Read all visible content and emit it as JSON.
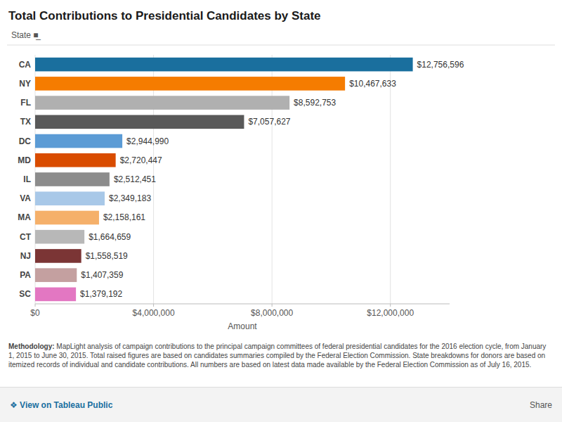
{
  "chart_data": {
    "type": "bar",
    "orientation": "horizontal",
    "title": "Total Contributions to Presidential Candidates by State",
    "categories": [
      "SC",
      "PA",
      "NJ",
      "CT",
      "MA",
      "VA",
      "IL",
      "MD",
      "DC",
      "TX",
      "FL",
      "NY",
      "CA"
    ],
    "values": [
      1379192,
      1407359,
      1558519,
      1664659,
      2158161,
      2349183,
      2512451,
      2720447,
      2944990,
      7057627,
      8592753,
      10467633,
      12756596
    ],
    "value_labels": [
      "$1,379,192",
      "$1,407,359",
      "$1,558,519",
      "$1,664,659",
      "$2,158,161",
      "$2,349,183",
      "$2,512,451",
      "$2,720,447",
      "$2,944,990",
      "$7,057,627",
      "$8,592,753",
      "$10,467,633",
      "$12,756,596"
    ],
    "colors": [
      "#e377c2",
      "#c4a0a0",
      "#7b3535",
      "#b8b8b8",
      "#f5b06a",
      "#a8c8e8",
      "#8c8c8c",
      "#d94c00",
      "#5b9bd5",
      "#595959",
      "#b0b0b0",
      "#f57c00",
      "#1a6f9e"
    ],
    "xlabel": "Amount",
    "xlim": [
      0,
      14000000
    ],
    "xticks": [
      {
        "value": 0,
        "label": "$0"
      },
      {
        "value": 4000000,
        "label": "$4,000,000"
      },
      {
        "value": 8000000,
        "label": "$8,000,000"
      },
      {
        "value": 12000000,
        "label": "$12,000,000"
      }
    ],
    "grid": true,
    "data_labels": true,
    "annotations": [
      "State  ■̲",
      "Methodology:",
      " MapLight analysis of campaign contributions to the principal campaign committees of federal presidential candidates for the 2016 election cycle, from January 1, 2015 to June 30, 2015. Total raised figures are based on candidates summaries compiled by the Federal Election Commission. State breakdowns for donors are based on itemized records of individual and candidate contributions. All numbers are based on latest data made available by the Federal Election Commission as of July 16, 2015.",
      "❖ View on Tableau Public",
      "Share"
    ]
  }
}
